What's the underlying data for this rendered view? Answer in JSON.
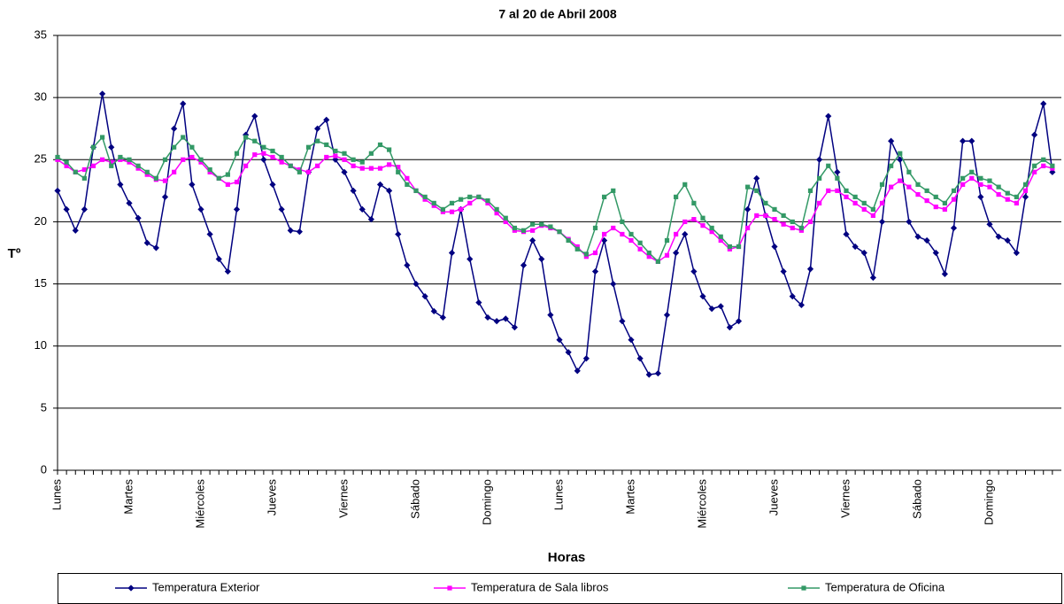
{
  "chart_data": {
    "type": "line",
    "title": "7 al 20 de Abril 2008",
    "x_label": "Horas",
    "y_label": "Tº",
    "ylim": [
      0,
      35
    ],
    "yticks": [
      0,
      5,
      10,
      15,
      20,
      25,
      30,
      35
    ],
    "grid": true,
    "legend": "bottom",
    "categories": [
      "Lunes",
      null,
      null,
      null,
      null,
      null,
      null,
      null,
      "Martes",
      null,
      null,
      null,
      null,
      null,
      null,
      null,
      "Miércoles",
      null,
      null,
      null,
      null,
      null,
      null,
      null,
      "Jueves",
      null,
      null,
      null,
      null,
      null,
      null,
      null,
      "Viernes",
      null,
      null,
      null,
      null,
      null,
      null,
      null,
      "Sábado",
      null,
      null,
      null,
      null,
      null,
      null,
      null,
      "Domingo",
      null,
      null,
      null,
      null,
      null,
      null,
      null,
      "Lunes",
      null,
      null,
      null,
      null,
      null,
      null,
      null,
      "Martes",
      null,
      null,
      null,
      null,
      null,
      null,
      null,
      "Miércoles",
      null,
      null,
      null,
      null,
      null,
      null,
      null,
      "Jueves",
      null,
      null,
      null,
      null,
      null,
      null,
      null,
      "Viernes",
      null,
      null,
      null,
      null,
      null,
      null,
      null,
      "Sábado",
      null,
      null,
      null,
      null,
      null,
      null,
      null,
      "Domingo",
      null,
      null,
      null,
      null,
      null,
      null,
      null
    ],
    "series": [
      {
        "name": "Temperatura Exterior",
        "color": "#000080",
        "marker": "diamond",
        "values": [
          22.5,
          21,
          19.3,
          21,
          26,
          30.3,
          26,
          23,
          21.5,
          20.3,
          18.3,
          17.9,
          22,
          27.5,
          29.5,
          23,
          21,
          19,
          17,
          16,
          21,
          27,
          28.5,
          25,
          23,
          21,
          19.3,
          19.2,
          24,
          27.5,
          28.2,
          25,
          24,
          22.5,
          21,
          20.2,
          23,
          22.5,
          19,
          16.5,
          15,
          14,
          12.8,
          12.3,
          17.5,
          21,
          17,
          13.5,
          12.3,
          12,
          12.2,
          11.5,
          16.5,
          18.5,
          17,
          12.5,
          10.5,
          9.5,
          8,
          9,
          16,
          18.5,
          15,
          12,
          10.5,
          9,
          7.7,
          7.8,
          12.5,
          17.5,
          19,
          16,
          14,
          13,
          13.2,
          11.5,
          12,
          21,
          23.5,
          20.5,
          18,
          16,
          14,
          13.3,
          16.2,
          25,
          28.5,
          24,
          19,
          18,
          17.5,
          15.5,
          20,
          26.5,
          25,
          20,
          18.8,
          18.5,
          17.5,
          15.8,
          19.5,
          26.5,
          26.5,
          22,
          19.8,
          18.8,
          18.5,
          17.5,
          22,
          27,
          29.5,
          24
        ]
      },
      {
        "name": "Temperatura de Sala libros",
        "color": "#ff00ff",
        "marker": "square",
        "values": [
          25,
          24.5,
          24,
          24.2,
          24.5,
          25,
          24.8,
          25,
          24.8,
          24.3,
          23.8,
          23.4,
          23.3,
          24,
          25,
          25.2,
          24.8,
          24,
          23.5,
          23,
          23.2,
          24.5,
          25.4,
          25.5,
          25.2,
          24.8,
          24.5,
          24.2,
          24,
          24.5,
          25.2,
          25.3,
          25,
          24.5,
          24.3,
          24.3,
          24.3,
          24.6,
          24.4,
          23.5,
          22.5,
          21.8,
          21.3,
          20.8,
          20.8,
          21,
          21.5,
          22,
          21.5,
          20.7,
          20,
          19.3,
          19.2,
          19.3,
          19.7,
          19.5,
          19.2,
          18.6,
          18,
          17.2,
          17.5,
          19,
          19.5,
          19,
          18.5,
          17.8,
          17.2,
          16.8,
          17.3,
          19,
          20,
          20.2,
          19.7,
          19.2,
          18.5,
          17.8,
          18,
          19.5,
          20.5,
          20.5,
          20.2,
          19.8,
          19.5,
          19.3,
          20,
          21.5,
          22.5,
          22.5,
          22,
          21.5,
          21,
          20.5,
          21.5,
          22.8,
          23.3,
          22.8,
          22.2,
          21.7,
          21.2,
          21,
          21.8,
          23,
          23.5,
          23,
          22.8,
          22.2,
          21.8,
          21.5,
          22.5,
          24,
          24.5,
          24.3
        ]
      },
      {
        "name": "Temperatura de Oficina",
        "color": "#339966",
        "marker": "square",
        "values": [
          25.2,
          24.8,
          24,
          23.5,
          26,
          26.8,
          24.5,
          25.2,
          25,
          24.5,
          24,
          23.5,
          25,
          26,
          26.8,
          26,
          25,
          24.2,
          23.5,
          23.8,
          25.5,
          26.8,
          26.5,
          26,
          25.7,
          25.2,
          24.5,
          24,
          26,
          26.5,
          26.2,
          25.7,
          25.5,
          25,
          24.8,
          25.5,
          26.2,
          25.8,
          24,
          23,
          22.5,
          22,
          21.5,
          21,
          21.5,
          21.8,
          22,
          22,
          21.7,
          21,
          20.3,
          19.5,
          19.3,
          19.8,
          19.8,
          19.6,
          19.2,
          18.5,
          17.8,
          17.4,
          19.5,
          22,
          22.5,
          20,
          19,
          18.3,
          17.5,
          16.8,
          18.5,
          22,
          23,
          21.5,
          20.3,
          19.5,
          18.8,
          18,
          18,
          22.8,
          22.5,
          21.5,
          21,
          20.5,
          20,
          19.5,
          22.5,
          23.5,
          24.5,
          23.5,
          22.5,
          22,
          21.5,
          21,
          23,
          24.5,
          25.5,
          24,
          23,
          22.5,
          22,
          21.5,
          22.5,
          23.5,
          24,
          23.5,
          23.3,
          22.8,
          22.3,
          22,
          23,
          24.5,
          25,
          24.5
        ]
      }
    ]
  }
}
